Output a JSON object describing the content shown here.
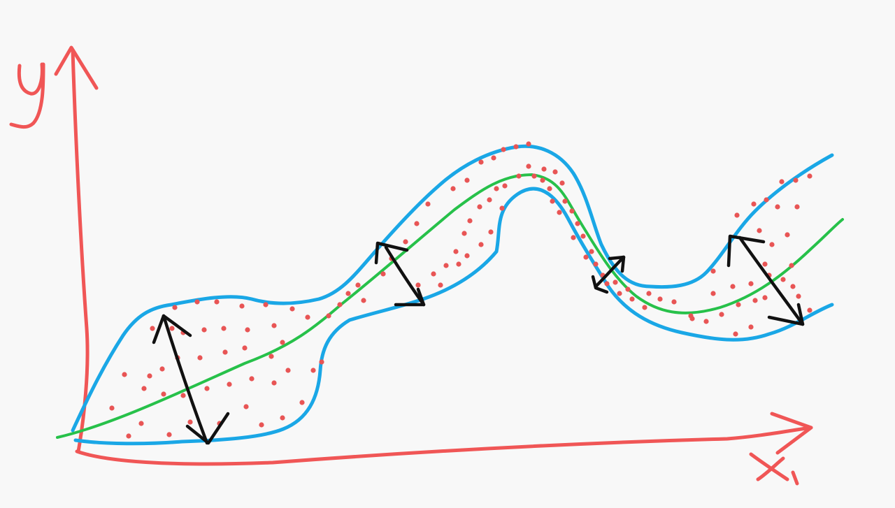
{
  "diagram": {
    "axes": {
      "x_label": "x",
      "y_label": "y"
    },
    "elements": [
      "axis-x",
      "axis-y",
      "band-upper-boundary",
      "band-lower-boundary",
      "mean-trend-curve",
      "scatter-points",
      "width-arrows"
    ],
    "colors": {
      "axes": "#f05656",
      "band": "#1aa7e6",
      "trend": "#27c14a",
      "points": "#e85555",
      "arrows": "#111111",
      "background": "#f8f8f8"
    },
    "icons": [
      "double-headed-arrow-icon"
    ]
  }
}
